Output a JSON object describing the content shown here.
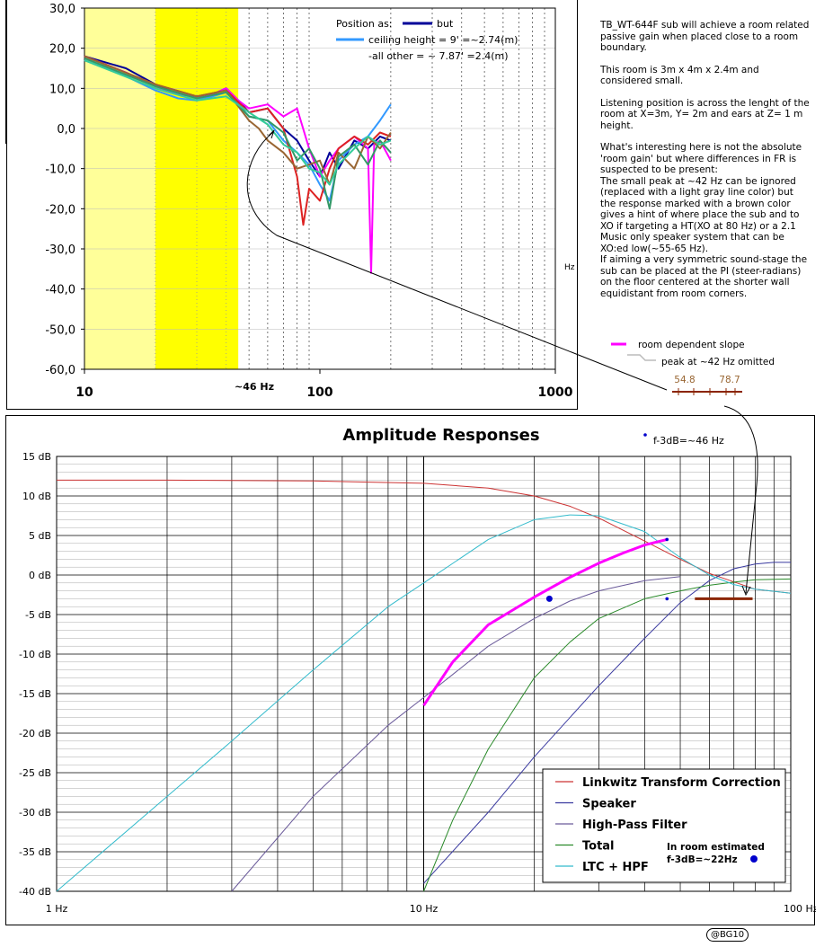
{
  "top_chart": {
    "y_ticks": [
      "30,0",
      "20,0",
      "10,0",
      "0,0",
      "-10,0",
      "-20,0",
      "-30,0",
      "-40,0",
      "-50,0",
      "-60,0"
    ],
    "x_ticks": [
      "10",
      "100",
      "1000"
    ],
    "unit_label": "Hz",
    "marker_46": "~46 Hz",
    "legend": {
      "position_as": "Position as:",
      "but": "but",
      "ceiling": "ceiling height = 9' =~2.74(m)",
      "other": "-all other = ~ 7.87' =2.4(m)"
    }
  },
  "notes": [
    "TB_WT-644F sub will achieve a room related passive gain when placed close to a room boundary.",
    "This room is 3m x 4m x 2.4m and considered small.",
    "Listening position is across the lenght of the room at X=3m, Y= 2m and ears at Z= 1 m height.",
    "What's interesting here is not the absolute 'room gain' but where differences in FR is suspected to be present:\nThe small peak at ~42 Hz can be ignored (replaced with a light gray line color) but the response marked with a brown color gives a hint of where place the sub and to XO if targeting a HT(XO at 80 Hz) or a 2.1 Music only speaker system that can be XO:ed low(~55-65 Hz).\nIf aiming a very symmetric sound-stage the sub can be  placed at the PI (steer-radians) on the floor centered at the shorter wall equidistant from room corners."
  ],
  "key": {
    "slope_label": "room dependent slope",
    "peak_label": "peak at ~42 Hz omitted",
    "range_low": "54.8",
    "range_high": "78.7"
  },
  "bottom_chart": {
    "title": "Amplitude Responses",
    "f3db_label": "f-3dB=~46 Hz",
    "y_ticks": [
      "15 dB",
      "10 dB",
      "5 dB",
      "0 dB",
      "-5 dB",
      "-10 dB",
      "-15 dB",
      "-20 dB",
      "-25 dB",
      "-30 dB",
      "-35 dB",
      "-40 dB"
    ],
    "x_ticks": [
      "1 Hz",
      "10 Hz",
      "100 Hz"
    ],
    "legend": [
      "Linkwitz Transform Correction",
      "Speaker",
      "High-Pass Filter",
      "Total",
      "LTC + HPF"
    ],
    "room_note_line1": "In room estimated",
    "room_note_line2": "f-3dB=~22Hz"
  },
  "signature": "@BG10",
  "colors": {
    "light_yellow": "#ffff99",
    "yellow": "#ffff00",
    "ltc": "#cc3333",
    "speaker": "#3a3aa0",
    "hpf": "#6a5a9a",
    "total": "#2a8a2a",
    "ltc_hpf": "#33bbcc",
    "magenta": "#ff00ff",
    "brown": "#8b2500"
  },
  "chart_data": [
    {
      "type": "line",
      "x_scale": "log",
      "xlim": [
        10,
        1000
      ],
      "ylim": [
        -60,
        30
      ],
      "grid": true,
      "legend_position": "top-right",
      "series": [
        {
          "color": "#000099",
          "x": [
            10,
            15,
            20,
            25,
            30,
            35,
            40,
            45,
            50,
            60,
            70,
            80,
            90,
            100,
            110,
            120,
            140,
            160,
            180,
            200
          ],
          "y": [
            18,
            15,
            11,
            8.5,
            8,
            8.5,
            10,
            7,
            4,
            5,
            0,
            -3,
            -8,
            -12,
            -6,
            -10,
            -3,
            -5,
            -2,
            -3
          ]
        },
        {
          "color": "#3399ff",
          "x": [
            10,
            15,
            20,
            25,
            30,
            35,
            40,
            45,
            50,
            60,
            70,
            80,
            90,
            100,
            110,
            120,
            140,
            160,
            180,
            200
          ],
          "y": [
            17,
            13,
            9.5,
            7.5,
            7,
            8,
            9,
            6,
            3,
            2,
            -3,
            -6,
            -9,
            -14,
            -18,
            -8,
            -4,
            -2,
            2,
            6
          ]
        },
        {
          "color": "#ff00ff",
          "x": [
            10,
            15,
            20,
            25,
            30,
            35,
            40,
            45,
            50,
            60,
            70,
            80,
            90,
            100,
            110,
            120,
            140,
            160,
            165,
            170,
            180,
            200
          ],
          "y": [
            18,
            14,
            10.5,
            8.5,
            8,
            8.5,
            10,
            7,
            5,
            6,
            3,
            5,
            -5,
            -12,
            -8,
            -5,
            -2,
            -5,
            -36,
            -4,
            -3,
            -8
          ]
        },
        {
          "color": "#dd2222",
          "x": [
            10,
            20,
            30,
            40,
            50,
            60,
            70,
            80,
            85,
            90,
            100,
            110,
            120,
            140,
            160,
            180,
            200
          ],
          "y": [
            18,
            11,
            8,
            9.5,
            4,
            5,
            0,
            -12,
            -24,
            -15,
            -18,
            -10,
            -5,
            -2,
            -4,
            -1,
            -2
          ]
        },
        {
          "color": "#996633",
          "x": [
            10,
            20,
            30,
            40,
            50,
            55,
            60,
            70,
            80,
            90,
            100,
            110,
            120,
            140,
            160,
            180,
            200
          ],
          "y": [
            18,
            11,
            8,
            9.5,
            2,
            0,
            -3,
            -6,
            -10,
            -9,
            -8,
            -14,
            -6,
            -10,
            -2,
            -5,
            -1
          ]
        },
        {
          "color": "#339966",
          "x": [
            10,
            20,
            30,
            40,
            50,
            60,
            70,
            80,
            90,
            100,
            110,
            120,
            140,
            160,
            180,
            200
          ],
          "y": [
            17.5,
            10.5,
            7.5,
            9,
            3,
            2,
            -1,
            -8,
            -5,
            -10,
            -20,
            -7,
            -4,
            -9,
            -3,
            -6
          ]
        },
        {
          "color": "#33cc99",
          "x": [
            10,
            20,
            30,
            40,
            50,
            60,
            70,
            80,
            90,
            100,
            110,
            120,
            140,
            160,
            180,
            200
          ],
          "y": [
            17,
            10,
            7,
            8,
            4,
            1,
            -4,
            -6,
            -10,
            -11,
            -14,
            -9,
            -5,
            -2,
            -4,
            -3
          ]
        }
      ]
    },
    {
      "type": "line",
      "title": "Amplitude Responses",
      "x_scale": "log",
      "xlim": [
        1,
        100
      ],
      "ylim": [
        -40,
        15
      ],
      "grid": true,
      "legend_position": "bottom-right",
      "series": [
        {
          "name": "Linkwitz Transform Correction",
          "color": "#cc3333",
          "x": [
            1,
            2,
            5,
            10,
            15,
            20,
            25,
            30,
            40,
            50,
            60,
            80,
            100
          ],
          "y": [
            12,
            12,
            11.9,
            11.6,
            11,
            10,
            8.7,
            7.2,
            4.3,
            2,
            0.2,
            -1.8,
            -2.3
          ]
        },
        {
          "name": "Speaker",
          "color": "#3a3aa0",
          "x": [
            10,
            15,
            20,
            30,
            40,
            50,
            60,
            70,
            80,
            90,
            100
          ],
          "y": [
            -39,
            -30,
            -23,
            -14,
            -8,
            -3.5,
            -0.7,
            0.8,
            1.4,
            1.6,
            1.6
          ]
        },
        {
          "name": "High-Pass Filter",
          "color": "#6a5a9a",
          "x": [
            3,
            5,
            8,
            10,
            15,
            20,
            25,
            30,
            40,
            50
          ],
          "y": [
            -40,
            -28,
            -19,
            -15.5,
            -9,
            -5.5,
            -3.3,
            -2,
            -0.7,
            -0.2
          ]
        },
        {
          "name": "Total",
          "color": "#2a8a2a",
          "x": [
            10,
            12,
            15,
            20,
            25,
            30,
            40,
            50,
            60,
            70,
            80,
            100
          ],
          "y": [
            -40,
            -31,
            -22,
            -13,
            -8.5,
            -5.5,
            -3,
            -2,
            -1.3,
            -0.9,
            -0.6,
            -0.5
          ]
        },
        {
          "name": "LTC + HPF",
          "color": "#33bbcc",
          "x": [
            1,
            2,
            3,
            5,
            8,
            10,
            15,
            20,
            25,
            30,
            40,
            50,
            60,
            70,
            80,
            100
          ],
          "y": [
            -40,
            -28,
            -21,
            -12,
            -4,
            -1,
            4.5,
            7,
            7.6,
            7.5,
            5.5,
            2.2,
            0,
            -1.2,
            -1.8,
            -2.3
          ]
        },
        {
          "color": "#ff00ff",
          "x": [
            10,
            12,
            15,
            20,
            25,
            30,
            35,
            40,
            46
          ],
          "y": [
            -16.5,
            -11,
            -6.3,
            -2.8,
            -0.3,
            1.5,
            2.8,
            3.8,
            4.5
          ]
        },
        {
          "color": "#8b2500",
          "x": [
            54.8,
            78.7
          ],
          "y": [
            -3,
            -3
          ]
        }
      ],
      "annotations": [
        {
          "text": "f-3dB=~46 Hz",
          "x": 46,
          "y": -3
        },
        {
          "text": "In room estimated f-3dB=~22Hz",
          "x": 22,
          "y": -3
        }
      ]
    }
  ]
}
